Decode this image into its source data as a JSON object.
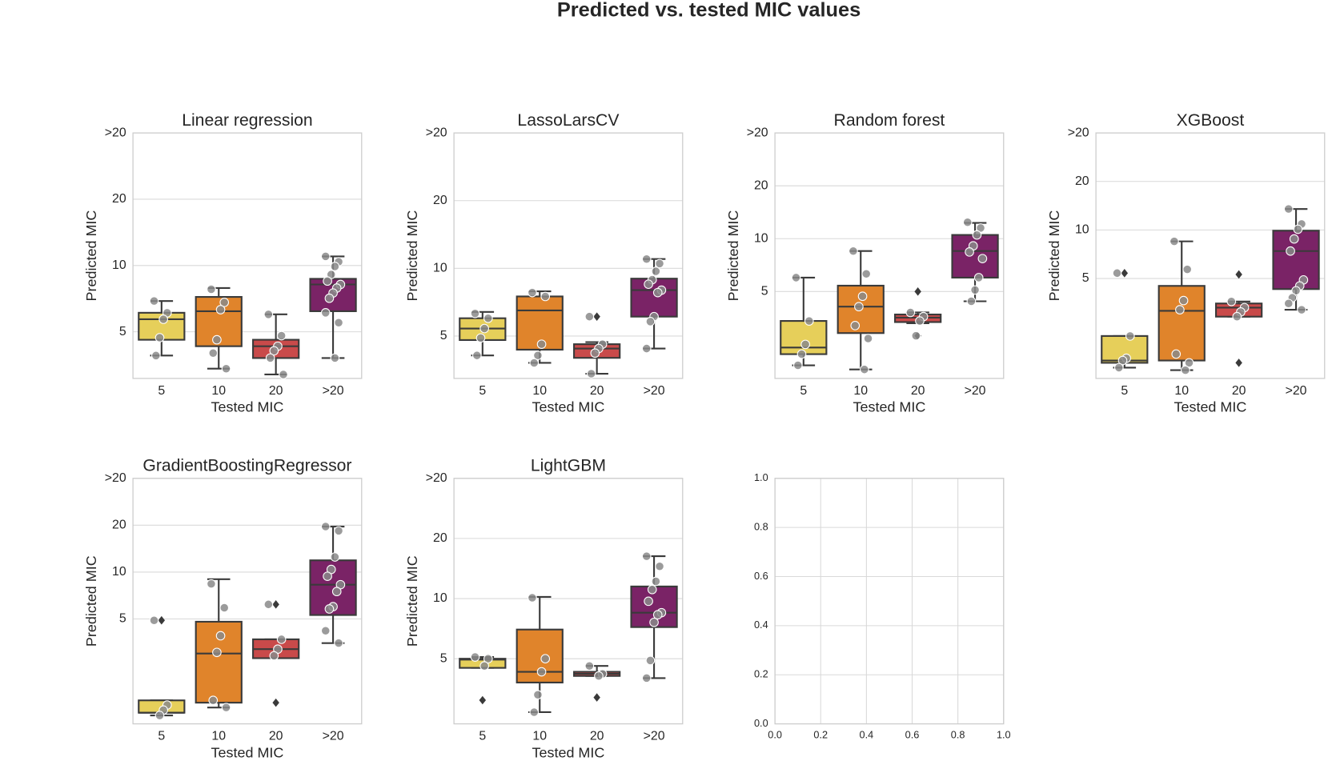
{
  "title": "Predicted vs. tested MIC values",
  "chart_data": [
    {
      "type": "box",
      "title": "Linear regression",
      "xlabel": "Tested MIC",
      "ylabel": "Predicted MIC",
      "categories": [
        "5",
        "10",
        "20",
        ">20"
      ],
      "colors": [
        "#e6cf5a",
        "#e0842b",
        "#c94a4a",
        "#7a2366"
      ],
      "yscale": "log",
      "ylim": [
        3.07,
        40
      ],
      "yticks": [
        5,
        10,
        20,
        {
          "value": 40,
          "label": ">20"
        }
      ],
      "grid": true,
      "boxes": [
        {
          "whislo": 3.9,
          "q1": 4.6,
          "med": 5.7,
          "q3": 6.1,
          "whishi": 6.9,
          "fliers": [],
          "points": [
            6.9,
            6.1,
            5.7,
            4.7,
            3.9
          ]
        },
        {
          "whislo": 3.4,
          "q1": 4.3,
          "med": 6.2,
          "q3": 7.2,
          "whishi": 7.9,
          "fliers": [],
          "points": [
            7.8,
            6.8,
            6.3,
            4.6,
            4.0,
            3.4
          ]
        },
        {
          "whislo": 3.2,
          "q1": 3.8,
          "med": 4.3,
          "q3": 4.6,
          "whishi": 6.0,
          "fliers": [],
          "points": [
            6.0,
            4.8,
            4.3,
            4.1,
            3.8,
            3.2
          ]
        },
        {
          "whislo": 3.8,
          "q1": 6.2,
          "med": 8.2,
          "q3": 8.7,
          "whishi": 11.0,
          "fliers": [],
          "points": [
            11.0,
            10.4,
            9.9,
            9.1,
            8.5,
            8.2,
            7.9,
            7.5,
            7.1,
            6.1,
            5.5,
            3.8
          ]
        }
      ]
    },
    {
      "type": "box",
      "title": "LassoLarsCV",
      "xlabel": "Tested MIC",
      "ylabel": "Predicted MIC",
      "categories": [
        "5",
        "10",
        "20",
        ">20"
      ],
      "colors": [
        "#e6cf5a",
        "#e0842b",
        "#c94a4a",
        "#7a2366"
      ],
      "yscale": "log",
      "ylim": [
        3.24,
        40
      ],
      "yticks": [
        5,
        10,
        20,
        {
          "value": 40,
          "label": ">20"
        }
      ],
      "grid": true,
      "boxes": [
        {
          "whislo": 4.1,
          "q1": 4.8,
          "med": 5.4,
          "q3": 6.0,
          "whishi": 6.4,
          "fliers": [],
          "points": [
            6.3,
            6.0,
            5.4,
            4.9,
            4.1
          ]
        },
        {
          "whislo": 3.8,
          "q1": 4.35,
          "med": 6.5,
          "q3": 7.5,
          "whishi": 7.9,
          "fliers": [],
          "points": [
            7.8,
            7.5,
            4.6,
            4.1,
            3.8
          ]
        },
        {
          "whislo": 3.4,
          "q1": 4.0,
          "med": 4.4,
          "q3": 4.6,
          "whishi": 4.7,
          "fliers": [
            6.1
          ],
          "points": [
            6.1,
            4.6,
            4.4,
            4.2,
            3.4
          ]
        },
        {
          "whislo": 4.4,
          "q1": 6.1,
          "med": 8.0,
          "q3": 9.0,
          "whishi": 11.0,
          "fliers": [],
          "points": [
            11.0,
            10.5,
            9.7,
            8.9,
            8.5,
            8.0,
            7.8,
            6.1,
            5.8,
            4.4
          ]
        }
      ]
    },
    {
      "type": "box",
      "title": "Random forest",
      "xlabel": "Tested MIC",
      "ylabel": "Predicted MIC",
      "categories": [
        "5",
        "10",
        "20",
        ">20"
      ],
      "colors": [
        "#e6cf5a",
        "#e0842b",
        "#c94a4a",
        "#7a2366"
      ],
      "yscale": "log",
      "ylim": [
        1.6,
        40
      ],
      "yticks": [
        5,
        10,
        20,
        {
          "value": 40,
          "label": ">20"
        }
      ],
      "grid": true,
      "boxes": [
        {
          "whislo": 1.9,
          "q1": 2.2,
          "med": 2.4,
          "q3": 3.4,
          "whishi": 6.0,
          "fliers": [],
          "points": [
            6.0,
            3.4,
            2.5,
            2.2,
            1.9
          ]
        },
        {
          "whislo": 1.8,
          "q1": 2.9,
          "med": 4.1,
          "q3": 5.4,
          "whishi": 8.5,
          "fliers": [],
          "points": [
            8.5,
            6.3,
            4.7,
            4.1,
            3.2,
            2.7,
            1.8
          ]
        },
        {
          "whislo": 3.3,
          "q1": 3.35,
          "med": 3.55,
          "q3": 3.7,
          "whishi": 3.8,
          "fliers": [
            5.0,
            2.8
          ],
          "points": [
            3.8,
            3.6,
            3.4,
            2.8
          ]
        },
        {
          "whislo": 4.4,
          "q1": 6.0,
          "med": 8.5,
          "q3": 10.5,
          "whishi": 12.3,
          "fliers": [],
          "points": [
            12.4,
            11.5,
            10.5,
            9.1,
            8.4,
            7.7,
            6.0,
            5.1,
            4.4
          ]
        }
      ]
    },
    {
      "type": "box",
      "title": "XGBoost",
      "xlabel": "Tested MIC",
      "ylabel": "Predicted MIC",
      "categories": [
        "5",
        "10",
        "20",
        ">20"
      ],
      "colors": [
        "#e6cf5a",
        "#e0842b",
        "#c94a4a",
        "#7a2366"
      ],
      "yscale": "log",
      "ylim": [
        1.2,
        40
      ],
      "yticks": [
        5,
        10,
        20,
        {
          "value": 40,
          "label": ">20"
        }
      ],
      "grid": true,
      "boxes": [
        {
          "whislo": 1.4,
          "q1": 1.5,
          "med": 1.55,
          "q3": 2.2,
          "whishi": 2.2,
          "fliers": [
            5.4
          ],
          "points": [
            5.4,
            2.2,
            1.6,
            1.55,
            1.4
          ]
        },
        {
          "whislo": 1.35,
          "q1": 1.55,
          "med": 3.15,
          "q3": 4.5,
          "whishi": 8.5,
          "fliers": [],
          "points": [
            8.5,
            5.7,
            3.65,
            3.2,
            1.7,
            1.5,
            1.35
          ]
        },
        {
          "whislo": 2.9,
          "q1": 2.9,
          "med": 3.3,
          "q3": 3.5,
          "whishi": 3.6,
          "fliers": [
            5.3,
            1.5
          ],
          "points": [
            3.6,
            3.3,
            3.1,
            2.9
          ]
        },
        {
          "whislo": 3.2,
          "q1": 4.3,
          "med": 7.4,
          "q3": 9.9,
          "whishi": 13.5,
          "fliers": [],
          "points": [
            13.5,
            10.9,
            10.1,
            8.8,
            7.4,
            4.9,
            4.5,
            4.2,
            3.8,
            3.5,
            3.2
          ]
        }
      ]
    },
    {
      "type": "box",
      "title": "GradientBoostingRegressor",
      "xlabel": "Tested MIC",
      "ylabel": "Predicted MIC",
      "categories": [
        "5",
        "10",
        "20",
        ">20"
      ],
      "colors": [
        "#e6cf5a",
        "#e0842b",
        "#c94a4a",
        "#7a2366"
      ],
      "yscale": "log",
      "ylim": [
        1.06,
        40
      ],
      "yticks": [
        5,
        10,
        20,
        {
          "value": 40,
          "label": ">20"
        }
      ],
      "grid": true,
      "boxes": [
        {
          "whislo": 1.2,
          "q1": 1.25,
          "med": 1.25,
          "q3": 1.5,
          "whishi": 1.5,
          "fliers": [
            4.9
          ],
          "points": [
            4.9,
            1.4,
            1.3,
            1.2
          ]
        },
        {
          "whislo": 1.35,
          "q1": 1.45,
          "med": 3.0,
          "q3": 4.8,
          "whishi": 9.0,
          "fliers": [],
          "points": [
            8.4,
            5.9,
            3.9,
            3.05,
            1.5,
            1.35
          ]
        },
        {
          "whislo": 2.8,
          "q1": 2.8,
          "med": 3.2,
          "q3": 3.7,
          "whishi": 3.7,
          "fliers": [
            6.2,
            1.45
          ],
          "points": [
            6.2,
            3.7,
            3.2,
            2.9
          ]
        },
        {
          "whislo": 3.5,
          "q1": 5.3,
          "med": 8.3,
          "q3": 11.9,
          "whishi": 19.6,
          "fliers": [],
          "points": [
            19.6,
            18.4,
            12.5,
            10.4,
            9.4,
            8.3,
            7.5,
            6.0,
            5.8,
            4.2,
            3.5
          ]
        }
      ]
    },
    {
      "type": "box",
      "title": "LightGBM",
      "xlabel": "Tested MIC",
      "ylabel": "Predicted MIC",
      "categories": [
        "5",
        "10",
        "20",
        ">20"
      ],
      "colors": [
        "#e6cf5a",
        "#e0842b",
        "#c94a4a",
        "#7a2366"
      ],
      "yscale": "log",
      "ylim": [
        2.36,
        40
      ],
      "yticks": [
        5,
        10,
        20,
        {
          "value": 40,
          "label": ">20"
        }
      ],
      "grid": true,
      "boxes": [
        {
          "whislo": 4.5,
          "q1": 4.5,
          "med": 4.95,
          "q3": 5.0,
          "whishi": 5.1,
          "fliers": [
            3.1
          ],
          "points": [
            5.1,
            5.0,
            4.6
          ]
        },
        {
          "whislo": 2.7,
          "q1": 3.8,
          "med": 4.3,
          "q3": 7.0,
          "whishi": 10.2,
          "fliers": [],
          "points": [
            10.1,
            5.0,
            4.3,
            3.3,
            2.7
          ]
        },
        {
          "whislo": 4.1,
          "q1": 4.1,
          "med": 4.2,
          "q3": 4.3,
          "whishi": 4.6,
          "fliers": [
            3.2
          ],
          "points": [
            4.6,
            4.2,
            4.1
          ]
        },
        {
          "whislo": 4.0,
          "q1": 7.2,
          "med": 8.5,
          "q3": 11.5,
          "whishi": 16.3,
          "fliers": [],
          "points": [
            16.3,
            14.5,
            12.2,
            11.1,
            9.7,
            8.5,
            8.3,
            7.6,
            4.9,
            4.0
          ]
        }
      ]
    },
    {
      "type": "blank",
      "xlim": [
        0,
        1
      ],
      "ylim": [
        0,
        1
      ],
      "grid": true,
      "xticks": [
        {
          "value": 0,
          "label": "0.0"
        },
        {
          "value": 0.2,
          "label": "0.2"
        },
        {
          "value": 0.4,
          "label": "0.4"
        },
        {
          "value": 0.6,
          "label": "0.6"
        },
        {
          "value": 0.8,
          "label": "0.8"
        },
        {
          "value": 1,
          "label": "1.0"
        }
      ],
      "yticks": [
        {
          "value": 0,
          "label": "0.0"
        },
        {
          "value": 0.2,
          "label": "0.2"
        },
        {
          "value": 0.4,
          "label": "0.4"
        },
        {
          "value": 0.6,
          "label": "0.6"
        },
        {
          "value": 0.8,
          "label": "0.8"
        },
        {
          "value": 1,
          "label": "1.0"
        }
      ]
    }
  ]
}
